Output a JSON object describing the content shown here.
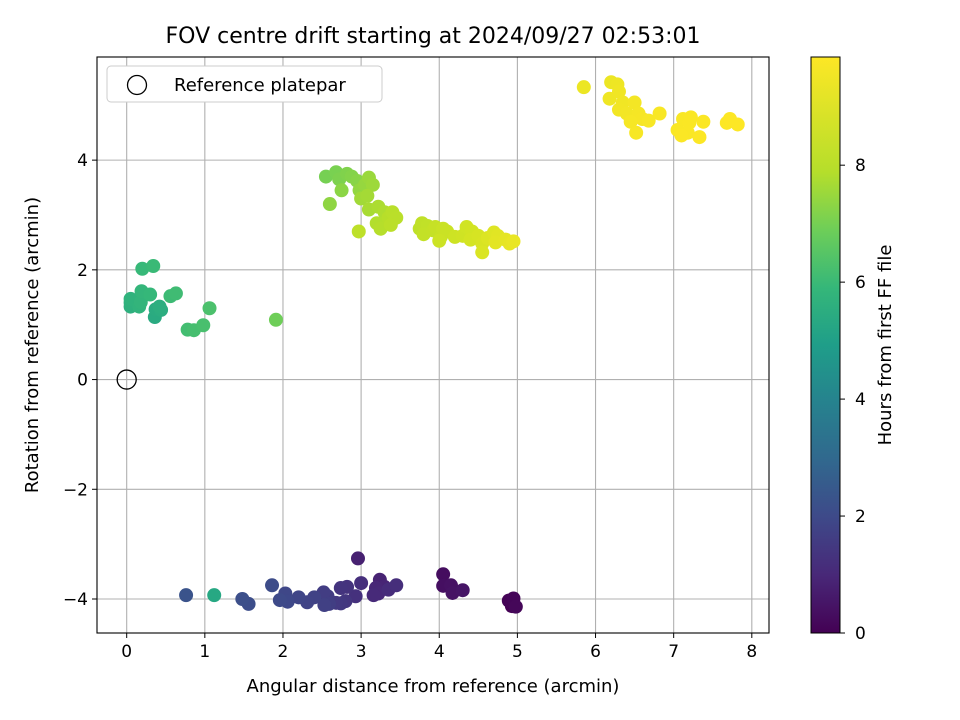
{
  "chart_data": {
    "type": "scatter",
    "title": "FOV centre drift starting at 2024/09/27 02:53:01",
    "xlabel": "Angular distance from reference (arcmin)",
    "ylabel": "Rotation from reference (arcmin)",
    "xlim": [
      -0.38,
      8.22
    ],
    "ylim": [
      -4.62,
      5.88
    ],
    "x_ticks": [
      0,
      1,
      2,
      3,
      4,
      5,
      6,
      7,
      8
    ],
    "x_tick_labels": [
      "0",
      "1",
      "2",
      "3",
      "4",
      "5",
      "6",
      "7",
      "8"
    ],
    "y_ticks": [
      -4,
      -2,
      0,
      2,
      4
    ],
    "y_tick_labels": [
      "−4",
      "−2",
      "0",
      "2",
      "4"
    ],
    "grid": true,
    "legend": {
      "location": "upper-left",
      "entries": [
        {
          "label": "Reference platepar",
          "marker": "open-circle"
        }
      ]
    },
    "reference_point": {
      "x": 0,
      "y": 0
    },
    "colorbar": {
      "label": "Hours from first FF file",
      "colormap": "viridis",
      "range": [
        0,
        9.85
      ],
      "ticks": [
        0,
        2,
        4,
        6,
        8
      ],
      "tick_labels": [
        "0",
        "2",
        "4",
        "6",
        "8"
      ]
    },
    "points": [
      {
        "x": 4.93,
        "y": -4.13,
        "c": 0.0
      },
      {
        "x": 4.89,
        "y": -4.03,
        "c": 0.05
      },
      {
        "x": 4.95,
        "y": -3.99,
        "c": 0.1
      },
      {
        "x": 4.98,
        "y": -4.14,
        "c": 0.15
      },
      {
        "x": 4.05,
        "y": -3.55,
        "c": 0.3
      },
      {
        "x": 4.05,
        "y": -3.76,
        "c": 0.35
      },
      {
        "x": 4.15,
        "y": -3.75,
        "c": 0.4
      },
      {
        "x": 4.17,
        "y": -3.89,
        "c": 0.45
      },
      {
        "x": 4.3,
        "y": -3.84,
        "c": 0.5
      },
      {
        "x": 2.96,
        "y": -3.26,
        "c": 0.8
      },
      {
        "x": 3.24,
        "y": -3.65,
        "c": 0.85
      },
      {
        "x": 3.3,
        "y": -3.78,
        "c": 0.9
      },
      {
        "x": 3.19,
        "y": -3.8,
        "c": 0.95
      },
      {
        "x": 3.22,
        "y": -3.9,
        "c": 1.0
      },
      {
        "x": 3.16,
        "y": -3.93,
        "c": 1.05
      },
      {
        "x": 3.35,
        "y": -3.83,
        "c": 1.1
      },
      {
        "x": 3.45,
        "y": -3.75,
        "c": 1.15
      },
      {
        "x": 3.0,
        "y": -3.71,
        "c": 1.2
      },
      {
        "x": 2.93,
        "y": -3.95,
        "c": 1.25
      },
      {
        "x": 2.82,
        "y": -3.78,
        "c": 1.3
      },
      {
        "x": 2.74,
        "y": -3.8,
        "c": 1.35
      },
      {
        "x": 2.8,
        "y": -4.04,
        "c": 1.4
      },
      {
        "x": 2.74,
        "y": -4.08,
        "c": 1.45
      },
      {
        "x": 2.68,
        "y": -4.07,
        "c": 1.5
      },
      {
        "x": 2.57,
        "y": -3.95,
        "c": 1.55
      },
      {
        "x": 2.52,
        "y": -3.88,
        "c": 1.6
      },
      {
        "x": 2.59,
        "y": -4.09,
        "c": 1.65
      },
      {
        "x": 2.53,
        "y": -4.11,
        "c": 1.7
      },
      {
        "x": 2.4,
        "y": -3.97,
        "c": 1.75
      },
      {
        "x": 2.31,
        "y": -4.06,
        "c": 1.8
      },
      {
        "x": 2.2,
        "y": -3.97,
        "c": 1.85
      },
      {
        "x": 2.03,
        "y": -3.9,
        "c": 1.9
      },
      {
        "x": 2.06,
        "y": -4.05,
        "c": 1.95
      },
      {
        "x": 1.96,
        "y": -4.02,
        "c": 2.0
      },
      {
        "x": 1.86,
        "y": -3.75,
        "c": 2.05
      },
      {
        "x": 1.56,
        "y": -4.09,
        "c": 2.1
      },
      {
        "x": 1.48,
        "y": -4.0,
        "c": 2.15
      },
      {
        "x": 0.76,
        "y": -3.93,
        "c": 2.3
      },
      {
        "x": 1.12,
        "y": -3.93,
        "c": 5.3
      },
      {
        "x": 0.36,
        "y": 1.14,
        "c": 5.4
      },
      {
        "x": 0.37,
        "y": 1.28,
        "c": 5.45
      },
      {
        "x": 0.44,
        "y": 1.27,
        "c": 5.5
      },
      {
        "x": 0.42,
        "y": 1.33,
        "c": 5.55
      },
      {
        "x": 0.05,
        "y": 1.33,
        "c": 5.6
      },
      {
        "x": 0.05,
        "y": 1.4,
        "c": 5.65
      },
      {
        "x": 0.05,
        "y": 1.47,
        "c": 5.7
      },
      {
        "x": 0.16,
        "y": 1.33,
        "c": 5.75
      },
      {
        "x": 0.18,
        "y": 1.41,
        "c": 5.8
      },
      {
        "x": 0.19,
        "y": 1.61,
        "c": 5.85
      },
      {
        "x": 0.3,
        "y": 1.55,
        "c": 5.9
      },
      {
        "x": 0.2,
        "y": 2.02,
        "c": 5.95
      },
      {
        "x": 0.34,
        "y": 2.07,
        "c": 6.0
      },
      {
        "x": 0.56,
        "y": 1.52,
        "c": 6.05
      },
      {
        "x": 0.63,
        "y": 1.57,
        "c": 6.1
      },
      {
        "x": 0.78,
        "y": 0.91,
        "c": 6.15
      },
      {
        "x": 0.86,
        "y": 0.9,
        "c": 6.2
      },
      {
        "x": 0.98,
        "y": 0.99,
        "c": 6.25
      },
      {
        "x": 1.06,
        "y": 1.3,
        "c": 6.3
      },
      {
        "x": 1.91,
        "y": 1.09,
        "c": 6.9
      },
      {
        "x": 2.55,
        "y": 3.7,
        "c": 7.0
      },
      {
        "x": 2.68,
        "y": 3.78,
        "c": 7.05
      },
      {
        "x": 2.72,
        "y": 3.65,
        "c": 7.1
      },
      {
        "x": 2.82,
        "y": 3.75,
        "c": 7.15
      },
      {
        "x": 2.88,
        "y": 3.7,
        "c": 7.2
      },
      {
        "x": 2.95,
        "y": 3.62,
        "c": 7.25
      },
      {
        "x": 2.75,
        "y": 3.45,
        "c": 7.3
      },
      {
        "x": 2.6,
        "y": 3.2,
        "c": 7.35
      },
      {
        "x": 2.98,
        "y": 3.45,
        "c": 7.4
      },
      {
        "x": 3.05,
        "y": 3.55,
        "c": 7.45
      },
      {
        "x": 3.1,
        "y": 3.68,
        "c": 7.5
      },
      {
        "x": 3.15,
        "y": 3.55,
        "c": 7.55
      },
      {
        "x": 3.0,
        "y": 3.3,
        "c": 7.6
      },
      {
        "x": 3.08,
        "y": 3.35,
        "c": 7.65
      },
      {
        "x": 3.1,
        "y": 3.1,
        "c": 7.7
      },
      {
        "x": 3.22,
        "y": 3.15,
        "c": 7.75
      },
      {
        "x": 3.3,
        "y": 3.05,
        "c": 7.8
      },
      {
        "x": 3.2,
        "y": 2.85,
        "c": 7.85
      },
      {
        "x": 3.25,
        "y": 2.75,
        "c": 7.9
      },
      {
        "x": 3.35,
        "y": 2.95,
        "c": 7.95
      },
      {
        "x": 3.4,
        "y": 3.05,
        "c": 8.0
      },
      {
        "x": 3.45,
        "y": 2.95,
        "c": 8.05
      },
      {
        "x": 3.38,
        "y": 2.82,
        "c": 8.1
      },
      {
        "x": 2.97,
        "y": 2.7,
        "c": 8.15
      },
      {
        "x": 3.75,
        "y": 2.75,
        "c": 8.2
      },
      {
        "x": 3.78,
        "y": 2.85,
        "c": 8.25
      },
      {
        "x": 3.85,
        "y": 2.8,
        "c": 8.3
      },
      {
        "x": 3.8,
        "y": 2.65,
        "c": 8.35
      },
      {
        "x": 3.92,
        "y": 2.72,
        "c": 8.4
      },
      {
        "x": 3.95,
        "y": 2.78,
        "c": 8.45
      },
      {
        "x": 4.02,
        "y": 2.6,
        "c": 8.5
      },
      {
        "x": 4.05,
        "y": 2.75,
        "c": 8.55
      },
      {
        "x": 4.1,
        "y": 2.7,
        "c": 8.6
      },
      {
        "x": 4.0,
        "y": 2.53,
        "c": 8.65
      },
      {
        "x": 4.2,
        "y": 2.6,
        "c": 8.7
      },
      {
        "x": 4.3,
        "y": 2.62,
        "c": 8.75
      },
      {
        "x": 4.35,
        "y": 2.78,
        "c": 8.8
      },
      {
        "x": 4.42,
        "y": 2.7,
        "c": 8.85
      },
      {
        "x": 4.4,
        "y": 2.55,
        "c": 8.9
      },
      {
        "x": 4.5,
        "y": 2.62,
        "c": 8.95
      },
      {
        "x": 4.55,
        "y": 2.48,
        "c": 9.0
      },
      {
        "x": 4.55,
        "y": 2.32,
        "c": 9.05
      },
      {
        "x": 4.62,
        "y": 2.58,
        "c": 9.1
      },
      {
        "x": 4.7,
        "y": 2.68,
        "c": 9.15
      },
      {
        "x": 4.75,
        "y": 2.62,
        "c": 9.2
      },
      {
        "x": 4.72,
        "y": 2.5,
        "c": 9.25
      },
      {
        "x": 4.85,
        "y": 2.55,
        "c": 9.3
      },
      {
        "x": 4.9,
        "y": 2.48,
        "c": 9.35
      },
      {
        "x": 4.95,
        "y": 2.52,
        "c": 9.4
      },
      {
        "x": 5.85,
        "y": 5.33,
        "c": 9.45
      },
      {
        "x": 6.2,
        "y": 5.42,
        "c": 9.47
      },
      {
        "x": 6.28,
        "y": 5.38,
        "c": 9.5
      },
      {
        "x": 6.18,
        "y": 5.12,
        "c": 9.52
      },
      {
        "x": 6.3,
        "y": 5.25,
        "c": 9.55
      },
      {
        "x": 6.35,
        "y": 5.05,
        "c": 9.57
      },
      {
        "x": 6.3,
        "y": 4.92,
        "c": 9.6
      },
      {
        "x": 6.4,
        "y": 4.85,
        "c": 9.62
      },
      {
        "x": 6.5,
        "y": 5.05,
        "c": 9.64
      },
      {
        "x": 6.55,
        "y": 4.85,
        "c": 9.66
      },
      {
        "x": 6.6,
        "y": 4.75,
        "c": 9.68
      },
      {
        "x": 6.45,
        "y": 4.7,
        "c": 9.7
      },
      {
        "x": 6.52,
        "y": 4.5,
        "c": 9.71
      },
      {
        "x": 6.68,
        "y": 4.72,
        "c": 9.72
      },
      {
        "x": 6.82,
        "y": 4.85,
        "c": 9.74
      },
      {
        "x": 7.05,
        "y": 4.55,
        "c": 9.75
      },
      {
        "x": 7.12,
        "y": 4.75,
        "c": 9.76
      },
      {
        "x": 7.2,
        "y": 4.68,
        "c": 9.77
      },
      {
        "x": 7.18,
        "y": 4.5,
        "c": 9.78
      },
      {
        "x": 7.22,
        "y": 4.78,
        "c": 9.79
      },
      {
        "x": 7.1,
        "y": 4.45,
        "c": 9.8
      },
      {
        "x": 7.38,
        "y": 4.7,
        "c": 9.81
      },
      {
        "x": 7.33,
        "y": 4.42,
        "c": 9.82
      },
      {
        "x": 7.68,
        "y": 4.68,
        "c": 9.83
      },
      {
        "x": 7.72,
        "y": 4.75,
        "c": 9.84
      },
      {
        "x": 7.82,
        "y": 4.65,
        "c": 9.85
      }
    ]
  }
}
